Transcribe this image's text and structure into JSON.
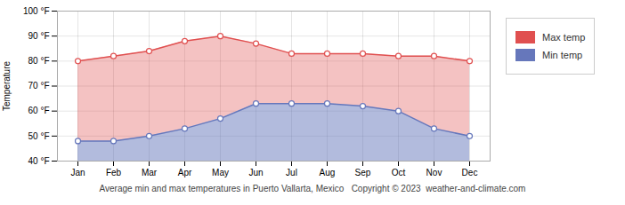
{
  "chart_data": {
    "type": "area",
    "title": "Average min and max temperatures in Puerto Vallarta, Mexico   Copyright © 2023  weather-and-climate.com",
    "y_label": "Temperature",
    "categories": [
      "Jan",
      "Feb",
      "Mar",
      "Apr",
      "May",
      "Jun",
      "Jul",
      "Aug",
      "Sep",
      "Oct",
      "Nov",
      "Dec"
    ],
    "series": [
      {
        "name": "Max temp",
        "color": "#e05050",
        "marker": "circle",
        "values": [
          80,
          82,
          84,
          88,
          90,
          87,
          83,
          83,
          83,
          82,
          82,
          80
        ]
      },
      {
        "name": "Min temp",
        "color": "#6677bb",
        "marker": "circle",
        "values": [
          48,
          48,
          50,
          53,
          57,
          63,
          63,
          63,
          62,
          60,
          53,
          50
        ]
      }
    ],
    "ylim": [
      40,
      100
    ],
    "yticks": [
      {
        "value": 40,
        "label": "40 °F"
      },
      {
        "value": 50,
        "label": "50 °F"
      },
      {
        "value": 60,
        "label": "60 °F"
      },
      {
        "value": 70,
        "label": "70 °F"
      },
      {
        "value": 80,
        "label": "80 °F"
      },
      {
        "value": 90,
        "label": "90 °F"
      },
      {
        "value": 100,
        "label": "100 °F"
      }
    ],
    "grid": true,
    "legend": "right"
  }
}
